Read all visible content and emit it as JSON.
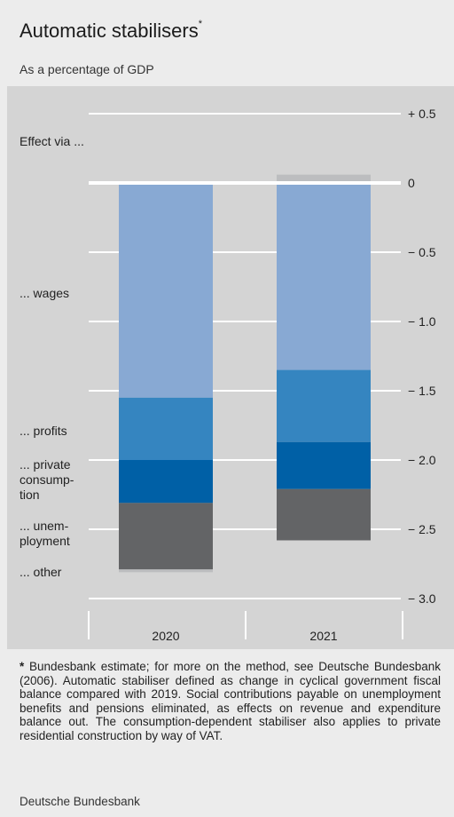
{
  "header": {
    "title": "Automatic stabilisers",
    "title_marker": "*",
    "subtitle": "As a percentage of GDP"
  },
  "footnote": {
    "marker": "*",
    "text": "Bundesbank estimate; for more on the method, see Deutsche Bundesbank (2006). Automatic stabiliser defined as change in cyclical government fiscal balance compared with 2019. Social contributions payable on unemployment benefits and pensions eliminated, as effects on revenue and expenditure balance out. The consumption-dependent stabiliser also applies to private residential construction by way of VAT."
  },
  "source": "Deutsche Bundesbank",
  "chart_data": {
    "type": "bar",
    "stacked": true,
    "categories": [
      "2020",
      "2021"
    ],
    "legend_heading": "Effect via ...",
    "series": [
      {
        "name": "... wages",
        "values": [
          -1.55,
          -1.35
        ],
        "color": "#88a9d3"
      },
      {
        "name": "... profits",
        "values": [
          -0.45,
          -0.52
        ],
        "color": "#3585c0"
      },
      {
        "name": "... private consump- tion",
        "values": [
          -0.31,
          -0.34
        ],
        "color": "#0060a6"
      },
      {
        "name": "... unem- ployment",
        "values": [
          -0.48,
          -0.37
        ],
        "color": "#636466"
      },
      {
        "name": "... other",
        "values": [
          -0.02,
          0.06
        ],
        "color": "#bcbdbf"
      }
    ],
    "ylim": [
      -3.0,
      0.5
    ],
    "yticks": [
      {
        "value": 0.5,
        "label": "+ 0.5"
      },
      {
        "value": 0,
        "label": "0"
      },
      {
        "value": -0.5,
        "label": "− 0.5"
      },
      {
        "value": -1.0,
        "label": "− 1.0"
      },
      {
        "value": -1.5,
        "label": "− 1.5"
      },
      {
        "value": -2.0,
        "label": "− 2.0"
      },
      {
        "value": -2.5,
        "label": "− 2.5"
      },
      {
        "value": -3.0,
        "label": "− 3.0"
      }
    ],
    "grid": true
  }
}
